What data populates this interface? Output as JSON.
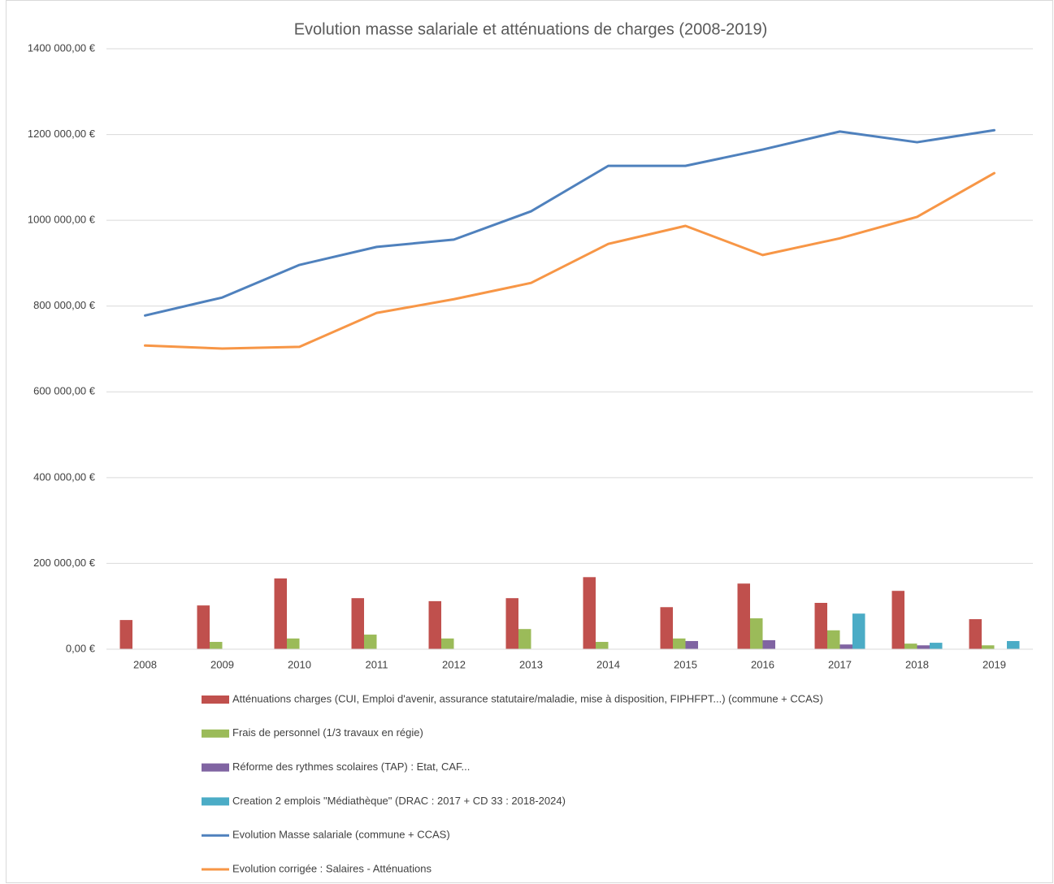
{
  "chart_data": {
    "type": "combo",
    "title": "Evolution masse salariale et atténuations de charges (2008-2019)",
    "categories": [
      "2008",
      "2009",
      "2010",
      "2011",
      "2012",
      "2013",
      "2014",
      "2015",
      "2016",
      "2017",
      "2018",
      "2019"
    ],
    "ylim": [
      0,
      1400000
    ],
    "yticks": [
      {
        "value": 0,
        "label": "0,00 €"
      },
      {
        "value": 200000,
        "label": "200 000,00 €"
      },
      {
        "value": 400000,
        "label": "400 000,00 €"
      },
      {
        "value": 600000,
        "label": "600 000,00 €"
      },
      {
        "value": 800000,
        "label": "800 000,00 €"
      },
      {
        "value": 1000000,
        "label": "1000 000,00 €"
      },
      {
        "value": 1200000,
        "label": "1200 000,00 €"
      },
      {
        "value": 1400000,
        "label": "1400 000,00 €"
      }
    ],
    "grid": true,
    "legend": "bottom",
    "series": [
      {
        "name": "Atténuations charges (CUI, Emploi d'avenir, assurance statutaire/maladie, mise à disposition, FIPHFPT...) (commune + CCAS)",
        "type": "bar",
        "color": "#c0504d",
        "values": [
          68000,
          102000,
          165000,
          119000,
          112000,
          119000,
          168000,
          98000,
          153000,
          108000,
          136000,
          70000
        ]
      },
      {
        "name": "Frais de personnel (1/3 travaux en régie)",
        "type": "bar",
        "color": "#9bbb59",
        "values": [
          null,
          17000,
          25000,
          34000,
          25000,
          47000,
          17000,
          25000,
          72000,
          44000,
          13000,
          9000
        ]
      },
      {
        "name": "Réforme des rythmes scolaires (TAP) : Etat, CAF...",
        "type": "bar",
        "color": "#8064a2",
        "values": [
          null,
          null,
          null,
          null,
          null,
          null,
          null,
          19000,
          21000,
          11000,
          9000,
          null
        ]
      },
      {
        "name": "Creation 2 emplois \"Médiathèque\" (DRAC : 2017 + CD 33 : 2018-2024)",
        "type": "bar",
        "color": "#4bacc6",
        "values": [
          null,
          null,
          null,
          null,
          null,
          null,
          null,
          null,
          null,
          83000,
          15000,
          19000
        ]
      },
      {
        "name": "Evolution Masse salariale (commune + CCAS)",
        "type": "line",
        "color": "#4f81bd",
        "values": [
          778000,
          820000,
          896000,
          938000,
          955000,
          1021000,
          1127000,
          1127000,
          1165000,
          1207000,
          1182000,
          1210000
        ]
      },
      {
        "name": "Evolution corrigée : Salaires - Atténuations",
        "type": "line",
        "color": "#f79646",
        "values": [
          708000,
          701000,
          705000,
          784000,
          816000,
          854000,
          945000,
          987000,
          919000,
          958000,
          1008000,
          1110000
        ]
      }
    ]
  }
}
